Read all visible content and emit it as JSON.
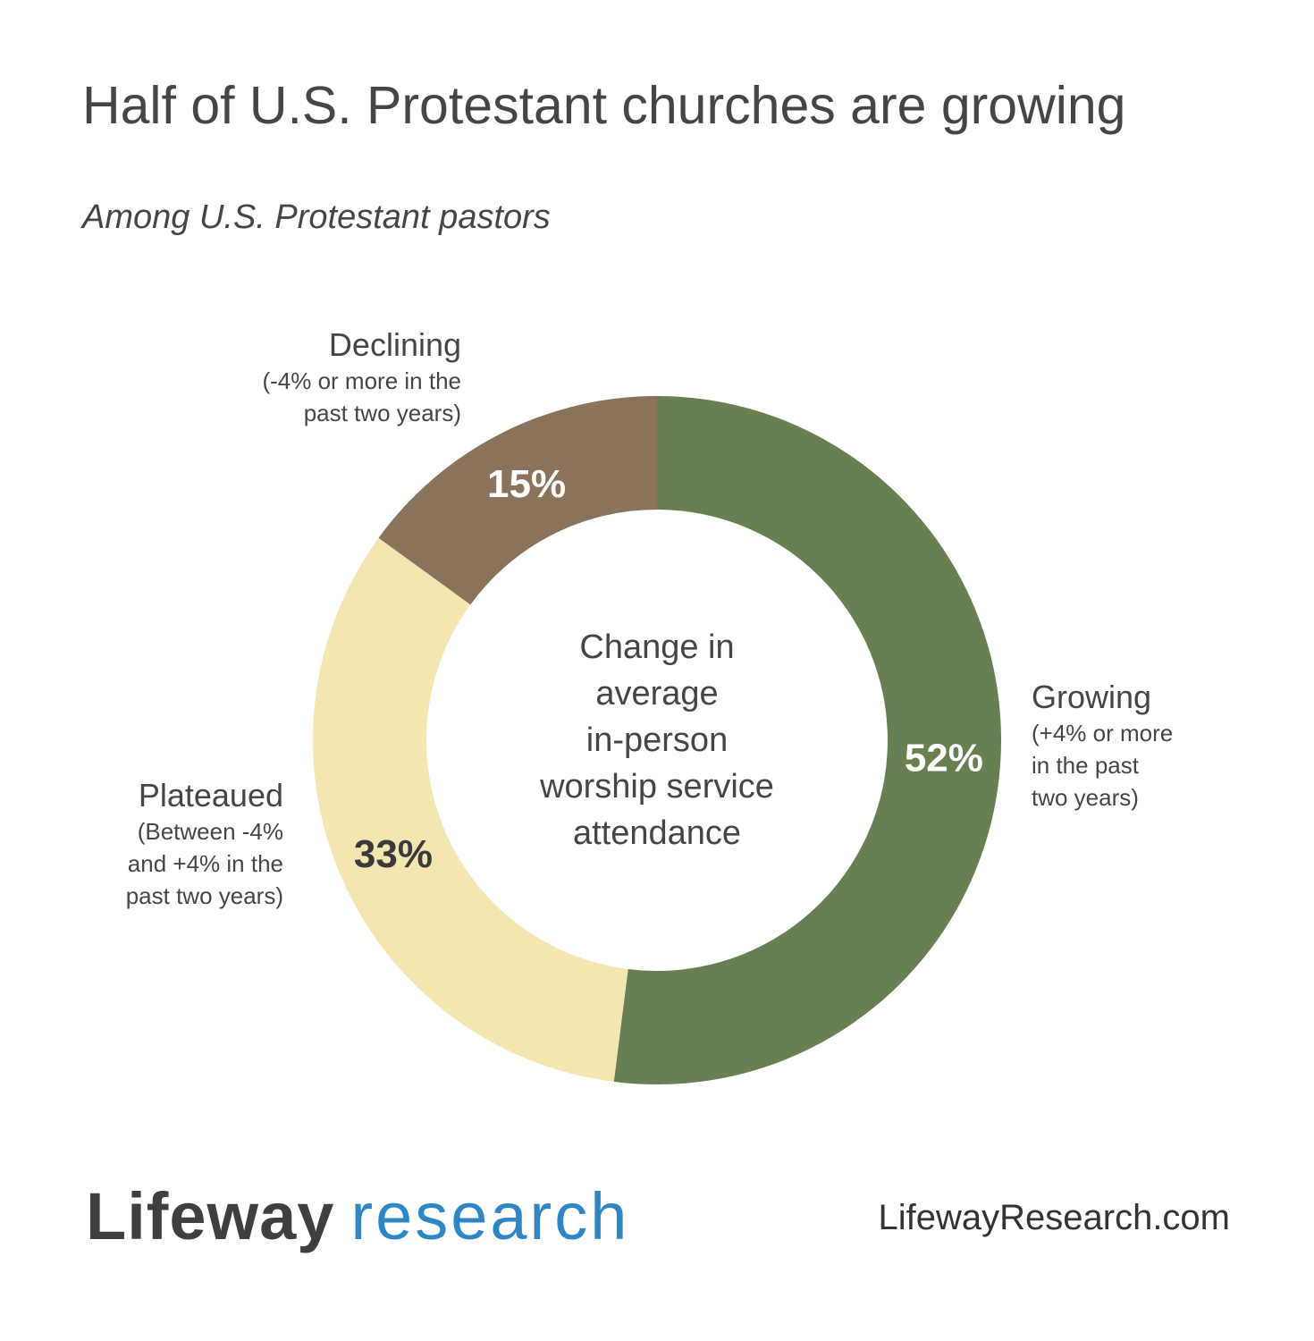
{
  "title": "Half of U.S. Protestant churches are growing",
  "subtitle": "Among U.S. Protestant pastors",
  "chart_data": {
    "type": "pie",
    "donut": true,
    "center_label": [
      "Change in",
      "average",
      "in-person",
      "worship service",
      "attendance"
    ],
    "series": [
      {
        "name": "Growing",
        "value": 52,
        "value_label": "52%",
        "description": [
          "(+4% or more",
          "in the past",
          "two years)"
        ],
        "color": "#687f52",
        "value_text_color": "#ffffff"
      },
      {
        "name": "Plateaued",
        "value": 33,
        "value_label": "33%",
        "description": [
          "(Between -4%",
          "and +4% in the",
          "past two years)"
        ],
        "color": "#f3e6b0",
        "value_text_color": "#3a3a3a"
      },
      {
        "name": "Declining",
        "value": 15,
        "value_label": "15%",
        "description": [
          "(-4% or more in the",
          "past two years)"
        ],
        "color": "#8a735c",
        "value_text_color": "#ffffff"
      }
    ]
  },
  "footer": {
    "logo_word1": "Lifeway",
    "logo_word2": "research",
    "url": "LifewayResearch.com"
  },
  "colors": {
    "logo_research": "#2f86c5",
    "text": "#454545"
  }
}
